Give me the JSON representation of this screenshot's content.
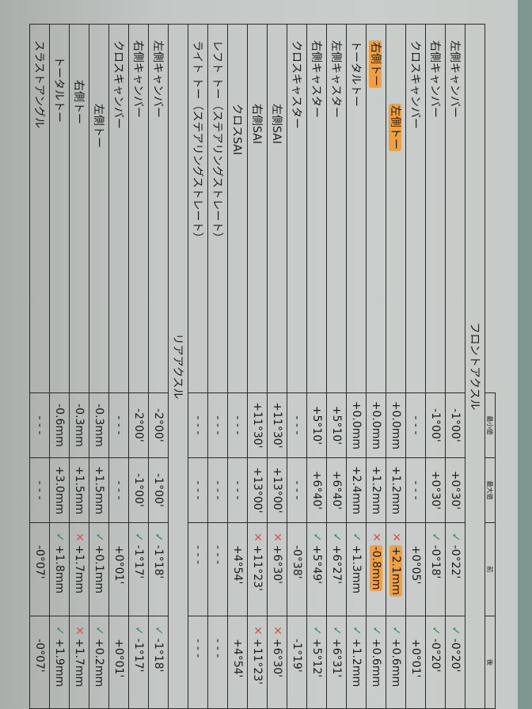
{
  "headers": {
    "min": "最小値",
    "max": "最大値",
    "before": "前",
    "after": "後"
  },
  "colors": {
    "ok": "#2f8a55",
    "ng": "#d0584c",
    "highlight": "#f0a040"
  },
  "sections": [
    {
      "title": "フロントアクスル",
      "rows": [
        {
          "label": "左側キャンバー",
          "indent": 0,
          "min": "-1°00'",
          "max": "+0°30'",
          "before": "-0°22'",
          "before_status": "ok",
          "after": "-0°20'",
          "after_status": "ok"
        },
        {
          "label": "右側キャンバー",
          "indent": 0,
          "min": "-1°00'",
          "max": "+0°30'",
          "before": "-0°18'",
          "before_status": "ok",
          "after": "-0°20'",
          "after_status": "ok"
        },
        {
          "label": "クロスキャンバー",
          "indent": 0,
          "min": "- - -",
          "max": "- - -",
          "before": "+0°05'",
          "after": "+0°01'"
        },
        {
          "label": "左側トー",
          "indent": 80,
          "highlight": true,
          "min": "+0.0mm",
          "max": "+1.2mm",
          "before": "+2.1mm",
          "before_status": "ng",
          "before_highlight": true,
          "after": "+0.6mm",
          "after_status": "ok"
        },
        {
          "label": "右側トー",
          "indent": 0,
          "highlight": true,
          "min": "+0.0mm",
          "max": "+1.2mm",
          "before": "-0.8mm",
          "before_status": "ng",
          "before_highlight": true,
          "after": "+0.6mm",
          "after_status": "ok"
        },
        {
          "label": "トータルトー",
          "indent": 0,
          "min": "+0.0mm",
          "max": "+2.4mm",
          "before": "+1.3mm",
          "before_status": "ok",
          "after": "+1.2mm",
          "after_status": "ok"
        },
        {
          "label": "左側キャスター",
          "indent": 0,
          "min": "+5°10'",
          "max": "+6°40'",
          "before": "+6°27'",
          "before_status": "ok",
          "after": "+6°31'",
          "after_status": "ok"
        },
        {
          "label": "右側キャスター",
          "indent": 0,
          "min": "+5°10'",
          "max": "+6°40'",
          "before": "+5°49'",
          "before_status": "ok",
          "after": "+5°12'",
          "after_status": "ok"
        },
        {
          "label": "クロスキャスター",
          "indent": 0,
          "min": "- - -",
          "max": "- - -",
          "before": "-0°38'",
          "after": "-1°19'"
        },
        {
          "label": "左側SAI",
          "indent": 80,
          "min": "+11°30'",
          "max": "+13°00'",
          "before": "+6°30'",
          "before_status": "ng",
          "after": "+6°30'",
          "after_status": "ng"
        },
        {
          "label": "右側SAI",
          "indent": 80,
          "min": "+11°30'",
          "max": "+13°00'",
          "before": "+11°23'",
          "before_status": "ng",
          "after": "+11°23'",
          "after_status": "ng"
        },
        {
          "label": "クロスSAI",
          "indent": 80,
          "min": "- - -",
          "max": "- - -",
          "before": "+4°54'",
          "after": "+4°54'"
        },
        {
          "label": "レフト トー（ステアリングストレート）",
          "indent": 0,
          "min": "- - -",
          "max": "- - -",
          "before": "- - -",
          "after": "- - -"
        },
        {
          "label": "ライト トー（ステアリングストレート）",
          "indent": 0,
          "min": "- - -",
          "max": "- - -",
          "before": "- - -",
          "after": "- - -"
        }
      ]
    },
    {
      "title": "リアアクスル",
      "rows": [
        {
          "label": "左側キャンバー",
          "indent": 0,
          "min": "-2°00'",
          "max": "-1°00'",
          "before": "-1°18'",
          "before_status": "ok",
          "after": "-1°18'",
          "after_status": "ok"
        },
        {
          "label": "右側キャンバー",
          "indent": 0,
          "min": "-2°00'",
          "max": "-1°00'",
          "before": "-1°17'",
          "before_status": "ok",
          "after": "-1°17'",
          "after_status": "ok"
        },
        {
          "label": "クロスキャンバー",
          "indent": 0,
          "min": "- - -",
          "max": "- - -",
          "before": "+0°01'",
          "after": "+0°01'"
        },
        {
          "label": "左側トー",
          "indent": 80,
          "min": "-0.3mm",
          "max": "+1.5mm",
          "before": "+0.1mm",
          "before_status": "ok",
          "after": "+0.2mm",
          "after_status": "ok"
        },
        {
          "label": "右側トー",
          "indent": 50,
          "min": "-0.3mm",
          "max": "+1.5mm",
          "before": "+1.7mm",
          "before_status": "ng",
          "after": "+1.7mm",
          "after_status": "ng"
        },
        {
          "label": "トータルトー",
          "indent": 20,
          "min": "-0.6mm",
          "max": "+3.0mm",
          "before": "+1.8mm",
          "before_status": "ok",
          "after": "+1.9mm",
          "after_status": "ok"
        },
        {
          "label": "スラストアングル",
          "indent": 0,
          "min": "- - -",
          "max": "- - -",
          "before": "-0°07'",
          "after": "-0°07'"
        }
      ]
    }
  ]
}
